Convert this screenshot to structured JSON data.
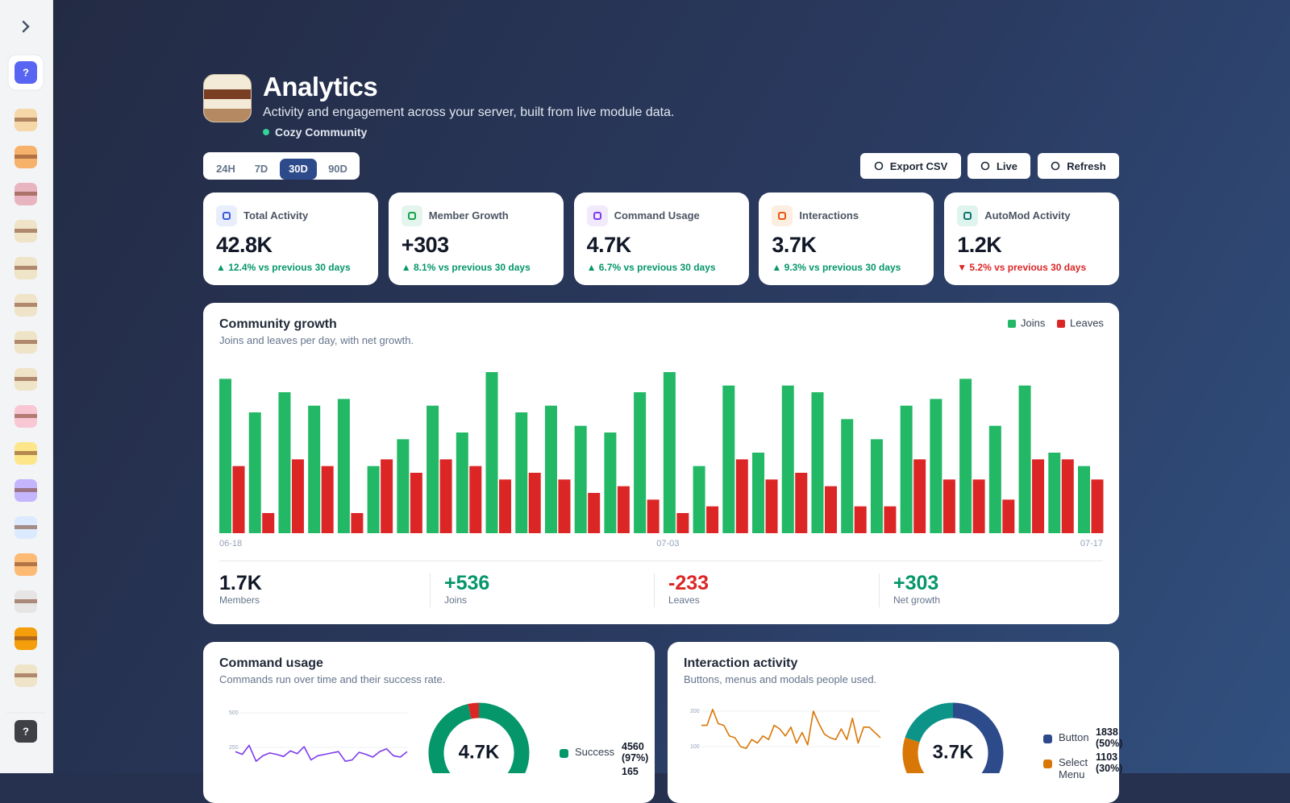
{
  "sidebar": {
    "top_icon": "?",
    "bottom_icon": "?"
  },
  "header": {
    "title": "Analytics",
    "subtitle": "Activity and engagement across your server, built from live module data.",
    "server": "Cozy Community"
  },
  "range_tabs": {
    "options": [
      "24H",
      "7D",
      "30D",
      "90D"
    ],
    "active": 2
  },
  "actions": [
    "Export CSV",
    "Live",
    "Refresh"
  ],
  "stats": [
    {
      "label": "Total Activity",
      "value": "42.8K",
      "change": "▲ 12.4% vs previous 30 days",
      "trend": "up"
    },
    {
      "label": "Member Growth",
      "value": "+303",
      "change": "▲ 8.1% vs previous 30 days",
      "trend": "up"
    },
    {
      "label": "Command Usage",
      "value": "4.7K",
      "change": "▲ 6.7% vs previous 30 days",
      "trend": "up"
    },
    {
      "label": "Interactions",
      "value": "3.7K",
      "change": "▲ 9.3% vs previous 30 days",
      "trend": "up"
    },
    {
      "label": "AutoMod Activity",
      "value": "1.2K",
      "change": "▼ 5.2% vs previous 30 days",
      "trend": "down"
    }
  ],
  "growth_summary": [
    {
      "value": "1.7K",
      "label": "Members",
      "tone": "neutral"
    },
    {
      "value": "+536",
      "label": "Joins",
      "tone": "up"
    },
    {
      "value": "-233",
      "label": "Leaves",
      "tone": "down"
    },
    {
      "value": "+303",
      "label": "Net growth",
      "tone": "up"
    }
  ],
  "chart_data": [
    {
      "type": "bar",
      "title": "Community growth",
      "subtitle": "Joins and leaves per day, with net growth.",
      "legend": "top-right",
      "categories": [
        "06-18",
        null,
        null,
        null,
        null,
        null,
        null,
        null,
        null,
        null,
        null,
        null,
        null,
        null,
        null,
        "07-03",
        null,
        null,
        null,
        null,
        null,
        null,
        null,
        null,
        null,
        null,
        null,
        null,
        null,
        "07-17"
      ],
      "series": [
        {
          "name": "Joins",
          "color": "#22b866",
          "values": [
            23,
            18,
            21,
            19,
            20,
            10,
            14,
            19,
            15,
            24,
            18,
            19,
            16,
            15,
            21,
            24,
            10,
            22,
            12,
            22,
            21,
            17,
            14,
            19,
            20,
            23,
            16,
            22,
            12,
            10
          ]
        },
        {
          "name": "Leaves",
          "color": "#dc2626",
          "values": [
            10,
            3,
            11,
            10,
            3,
            11,
            9,
            11,
            10,
            8,
            9,
            8,
            6,
            7,
            5,
            3,
            4,
            11,
            8,
            9,
            7,
            4,
            4,
            11,
            8,
            8,
            5,
            11,
            11,
            8
          ]
        }
      ]
    },
    {
      "type": "line",
      "title": "Command usage",
      "subtitle": "Commands run over time and their success rate.",
      "color": "#7c3aed",
      "grid": true,
      "ylim": [
        0,
        500
      ],
      "yticks": [
        250,
        500
      ],
      "values": [
        220,
        200,
        265,
        150,
        190,
        210,
        200,
        185,
        225,
        205,
        255,
        160,
        190,
        200,
        210,
        220,
        150,
        160,
        215,
        200,
        180,
        220,
        240,
        190,
        180,
        220
      ]
    },
    {
      "type": "donut",
      "center_label": "4.7K",
      "categories": [
        "Success",
        null
      ],
      "values": [
        4560,
        165
      ],
      "value_labels": [
        "4560 (97%)",
        "165"
      ],
      "colors": [
        "#059669",
        "#dc2626"
      ]
    },
    {
      "type": "line",
      "title": "Interaction activity",
      "subtitle": "Buttons, menus and modals people used.",
      "color": "#d97706",
      "grid": true,
      "ylim": [
        0,
        200
      ],
      "yticks": [
        100,
        200
      ],
      "values": [
        160,
        160,
        205,
        165,
        160,
        130,
        125,
        100,
        95,
        120,
        110,
        130,
        120,
        160,
        150,
        130,
        155,
        110,
        140,
        105,
        200,
        165,
        135,
        125,
        120,
        150,
        120,
        180,
        110,
        155,
        155,
        140,
        125
      ]
    },
    {
      "type": "donut",
      "center_label": "3.7K",
      "categories": [
        "Button",
        "Select Menu",
        null
      ],
      "values": [
        1838,
        1103,
        735
      ],
      "value_labels": [
        "1838 (50%)",
        "1103 (30%)",
        null
      ],
      "colors": [
        "#2d4a8a",
        "#d97706",
        "#0d9488"
      ]
    }
  ]
}
